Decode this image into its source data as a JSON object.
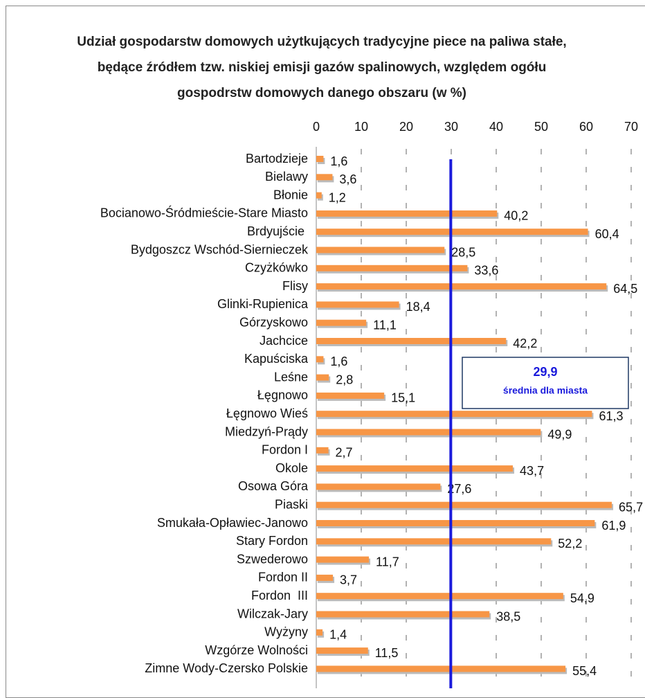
{
  "chart_data": {
    "type": "bar",
    "orientation": "horizontal",
    "title": "Udział gospodarstw domowych użytkujących tradycyjne piece na paliwa stałe, będące źródłem tzw. niskiej emisji gazów spalinowych, względem ogółu gospodrstw domowych danego obszaru (w %)",
    "categories": [
      "Bartodzieje",
      "Bielawy",
      "Błonie",
      "Bocianowo-Śródmieście-Stare Miasto",
      "Brdyujście ",
      "Bydgoszcz Wschód-Siernieczek",
      "Czyżkówko",
      "Flisy",
      "Glinki-Rupienica",
      "Górzyskowo",
      "Jachcice",
      "Kapuściska",
      "Leśne",
      "Łęgnowo",
      "Łęgnowo Wieś",
      "Miedzyń-Prądy",
      "Fordon I",
      "Okole",
      "Osowa Góra",
      "Piaski",
      "Smukała-Opławiec-Janowo",
      "Stary Fordon",
      "Szwederowo",
      "Fordon II",
      "Fordon  III",
      "Wilczak-Jary",
      "Wyżyny",
      "Wzgórze Wolności",
      "Zimne Wody-Czersko Polskie"
    ],
    "values": [
      1.6,
      3.6,
      1.2,
      40.2,
      60.4,
      28.5,
      33.6,
      64.5,
      18.4,
      11.1,
      42.2,
      1.6,
      2.8,
      15.1,
      61.3,
      49.9,
      2.7,
      43.7,
      27.6,
      65.7,
      61.9,
      52.2,
      11.7,
      3.7,
      54.9,
      38.5,
      1.4,
      11.5,
      55.4
    ],
    "value_labels": [
      "1,6",
      "3,6",
      "1,2",
      "40,2",
      "60,4",
      "28,5",
      "33,6",
      "64,5",
      "18,4",
      "11,1",
      "42,2",
      "1,6",
      "2,8",
      "15,1",
      "61,3",
      "49,9",
      "2,7",
      "43,7",
      "27,6",
      "65,7",
      "61,9",
      "52,2",
      "11,7",
      "3,7",
      "54,9",
      "38,5",
      "1,4",
      "11,5",
      "55,4"
    ],
    "color": "#f79646",
    "xlim": [
      0,
      70
    ],
    "xticks": [
      0,
      10,
      20,
      30,
      40,
      50,
      60,
      70
    ],
    "grid": true,
    "average": {
      "value": 29.9,
      "label": "29,9",
      "text": "średnia dla miasta",
      "color": "#1a1adc"
    }
  }
}
